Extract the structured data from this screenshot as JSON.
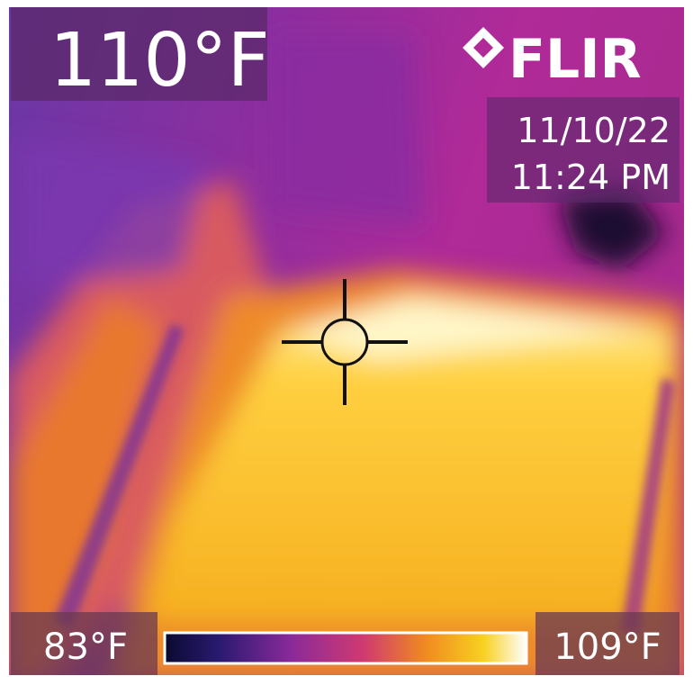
{
  "overlay": {
    "spot_temperature": "110°F",
    "brand": "FLIR",
    "date": "11/10/22",
    "time": "11:24 PM",
    "scale_min": "83°F",
    "scale_max": "109°F"
  }
}
